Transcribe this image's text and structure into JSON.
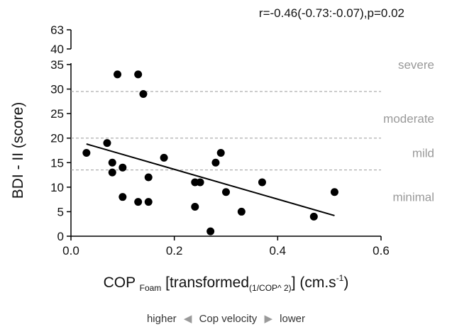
{
  "chart_data": {
    "type": "scatter",
    "annotation": "r=-0.46(-0.73:-0.07),p=0.02",
    "ylabel": "BDI - II (score)",
    "xlabel": {
      "main": "COP",
      "sub1": "Foam",
      "middle": "[transformed",
      "sub2": "(1/COP^ 2)",
      "unit_prefix": "] (cm.s",
      "unit_sup": "-1",
      "unit_suffix": ")"
    },
    "xlim": [
      0.0,
      0.6
    ],
    "ylim": [
      0,
      35
    ],
    "y_break": {
      "upper_ticks": [
        40,
        63
      ]
    },
    "x_ticks": [
      "0.0",
      "0.2",
      "0.4",
      "0.6"
    ],
    "y_ticks": [
      "0",
      "5",
      "10",
      "15",
      "20",
      "25",
      "30",
      "35"
    ],
    "y_break_tick_labels": [
      "40",
      "63"
    ],
    "points": [
      {
        "x": 0.03,
        "y": 17
      },
      {
        "x": 0.07,
        "y": 19
      },
      {
        "x": 0.08,
        "y": 15
      },
      {
        "x": 0.08,
        "y": 13
      },
      {
        "x": 0.09,
        "y": 33
      },
      {
        "x": 0.1,
        "y": 14
      },
      {
        "x": 0.1,
        "y": 8
      },
      {
        "x": 0.13,
        "y": 33
      },
      {
        "x": 0.13,
        "y": 7
      },
      {
        "x": 0.14,
        "y": 29
      },
      {
        "x": 0.15,
        "y": 12
      },
      {
        "x": 0.15,
        "y": 7
      },
      {
        "x": 0.18,
        "y": 16
      },
      {
        "x": 0.24,
        "y": 11
      },
      {
        "x": 0.24,
        "y": 6
      },
      {
        "x": 0.25,
        "y": 11
      },
      {
        "x": 0.27,
        "y": 1
      },
      {
        "x": 0.28,
        "y": 15
      },
      {
        "x": 0.29,
        "y": 17
      },
      {
        "x": 0.3,
        "y": 9
      },
      {
        "x": 0.33,
        "y": 5
      },
      {
        "x": 0.37,
        "y": 11
      },
      {
        "x": 0.47,
        "y": 4
      },
      {
        "x": 0.51,
        "y": 9
      }
    ],
    "regression_line": [
      {
        "x": 0.03,
        "y": 18.8
      },
      {
        "x": 0.51,
        "y": 4.2
      }
    ],
    "thresholds": [
      13.5,
      20,
      29.5
    ],
    "severity_labels": [
      "severe",
      "moderate",
      "mild",
      "minimal"
    ],
    "severity_label_y": [
      35,
      24,
      17,
      8
    ],
    "legend": {
      "left": "higher",
      "middle": "Cop velocity",
      "right": "lower"
    },
    "colors": {
      "points": "#000000",
      "thresholds": "#999999",
      "severity": "#999999"
    }
  }
}
